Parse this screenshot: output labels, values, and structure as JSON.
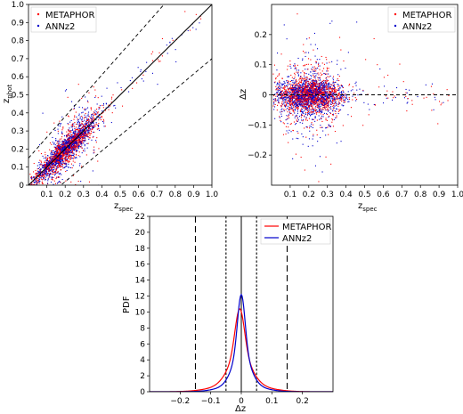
{
  "colors": {
    "metaphor": "#ff0000",
    "annz2": "#0000cc"
  },
  "chart_data": [
    {
      "type": "scatter",
      "xlabel": "z",
      "xlabel_sub": "spec",
      "ylabel": "z",
      "ylabel_sub": "phot",
      "xlim": [
        0.0,
        1.0
      ],
      "ylim": [
        0.0,
        1.0
      ],
      "x_ticks": [
        "0.1",
        "0.2",
        "0.3",
        "0.4",
        "0.5",
        "0.6",
        "0.7",
        "0.8",
        "0.9",
        "1.0"
      ],
      "y_ticks": [
        "0",
        "0.1",
        "0.2",
        "0.3",
        "0.4",
        "0.5",
        "0.6",
        "0.7",
        "0.8",
        "0.9",
        "1.0"
      ],
      "legend": [
        "METAPHOR",
        "ANNz2"
      ],
      "legend_position": "top-left",
      "reference_lines": [
        "identity (solid)",
        "outlier limits ±0.15(1+z) (dashed)"
      ],
      "cloud_extent_x": [
        0.0,
        0.5
      ],
      "series": [
        {
          "name": "METAPHOR",
          "color": "#ff0000"
        },
        {
          "name": "ANNz2",
          "color": "#0000cc"
        }
      ]
    },
    {
      "type": "scatter",
      "xlabel": "z",
      "xlabel_sub": "spec",
      "ylabel": "Δz",
      "xlim": [
        0.0,
        1.0
      ],
      "ylim": [
        -0.3,
        0.3
      ],
      "x_ticks": [
        "0.1",
        "0.2",
        "0.3",
        "0.4",
        "0.5",
        "0.6",
        "0.7",
        "0.8",
        "0.9",
        "1.0"
      ],
      "y_ticks": [
        "−0.2",
        "−0.1",
        "0",
        "0.1",
        "0.2"
      ],
      "legend": [
        "METAPHOR",
        "ANNz2"
      ],
      "legend_position": "top-right",
      "reference_lines": [
        "Δz = 0 (dashed)"
      ],
      "series": [
        {
          "name": "METAPHOR",
          "color": "#ff0000"
        },
        {
          "name": "ANNz2",
          "color": "#0000cc"
        }
      ]
    },
    {
      "type": "line",
      "xlabel": "Δz",
      "ylabel": "PDF",
      "xlim": [
        -0.3,
        0.3
      ],
      "ylim": [
        0,
        22
      ],
      "x_ticks": [
        "−0.2",
        "−0.1",
        "0",
        "0.1",
        "0.2"
      ],
      "y_ticks": [
        "0",
        "2",
        "4",
        "6",
        "8",
        "10",
        "12",
        "14",
        "16",
        "18",
        "20",
        "22"
      ],
      "legend_position": "top-right",
      "vertical_lines": [
        {
          "x": -0.15,
          "style": "long-dash"
        },
        {
          "x": -0.05,
          "style": "short-dash"
        },
        {
          "x": 0.0,
          "style": "solid"
        },
        {
          "x": 0.05,
          "style": "short-dash"
        },
        {
          "x": 0.15,
          "style": "long-dash"
        }
      ],
      "series": [
        {
          "name": "METAPHOR",
          "color": "#ff0000",
          "peak": 10.4,
          "center": -0.005
        },
        {
          "name": "ANNz2",
          "color": "#0000cc",
          "peak": 12.2,
          "center": 0.0
        }
      ]
    }
  ]
}
